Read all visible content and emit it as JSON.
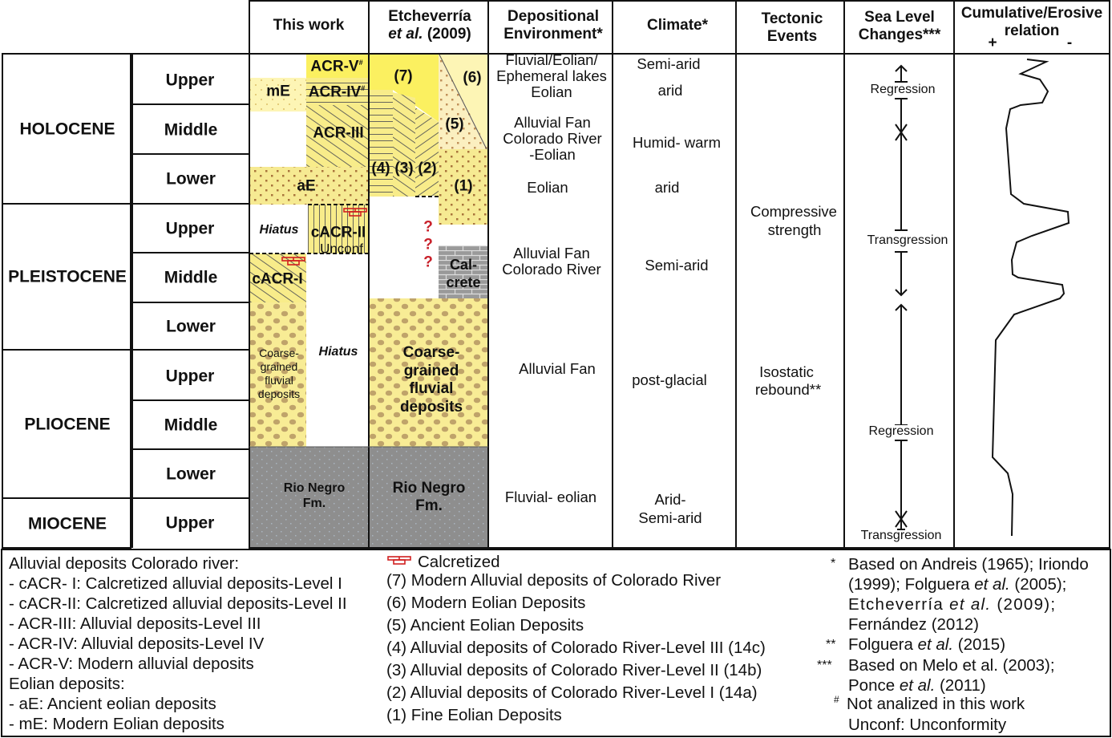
{
  "headers": {
    "this_work": "This work",
    "etcheverria_1": "Etcheverría",
    "etcheverria_2_italic": "et al.",
    "etcheverria_2_year": "(2009)",
    "dep_env_1": "Depositional",
    "dep_env_2": "Environment*",
    "climate": "Climate*",
    "tectonic_1": "Tectonic",
    "tectonic_2": "Events",
    "sea_1": "Sea Level",
    "sea_2": "Changes***",
    "cum_1": "Cumulative/Erosive",
    "cum_2": "relation",
    "cum_plus": "+",
    "cum_minus": "-"
  },
  "epochs": [
    "HOLOCENE",
    "PLEISTOCENE",
    "PLIOCENE",
    "MIOCENE"
  ],
  "subepochs": [
    "Upper",
    "Middle",
    "Lower",
    "Upper",
    "Middle",
    "Lower",
    "Upper",
    "Middle",
    "Lower",
    "Upper"
  ],
  "this_work_units": {
    "acr5": "ACR-V",
    "acr5_sup": "#",
    "me": "mE",
    "acr4": "ACR-IV",
    "acr4_sup": "#",
    "acr3": "ACR-III",
    "ae": "aE",
    "hiatus1": "Hiatus",
    "cacr2": "cACR-II",
    "unconf": "Unconf",
    "cacr1": "cACR-I",
    "hiatus2": "Hiatus",
    "coarse": [
      "Coarse-",
      "grained",
      "fluvial",
      "deposits"
    ],
    "rio_negro": [
      "Rio Negro",
      "Fm."
    ]
  },
  "etcheverria_units": {
    "u7": "(7)",
    "u6": "(6)",
    "u5": "(5)",
    "u4": "(4)",
    "u3": "(3)",
    "u2": "(2)",
    "u1": "(1)",
    "question": "?",
    "calcrete": [
      "Cal-",
      "crete"
    ],
    "coarse": [
      "Coarse-",
      "grained",
      "fluvial",
      "deposits"
    ],
    "rio_negro": [
      "Rio Negro",
      "Fm."
    ]
  },
  "depositional_environment": {
    "a": [
      "Fluvial/Eolian/",
      "Ephemeral lakes",
      "Eolian"
    ],
    "b": [
      "Alluvial Fan",
      "Colorado River",
      "-Eolian"
    ],
    "c": "Eolian",
    "d": [
      "Alluvial Fan",
      "Colorado River"
    ],
    "e": "Alluvial Fan",
    "f": "Fluvial- eolian"
  },
  "climate": {
    "a": "Semi-arid",
    "b": "arid",
    "c": "Humid- warm",
    "d": "arid",
    "e": "Semi-arid",
    "f": "post-glacial",
    "g1": "Arid-",
    "g2": "Semi-arid"
  },
  "tectonic": {
    "a": [
      "Compressive",
      "strength"
    ],
    "b": [
      "Isostatic",
      "rebound**"
    ]
  },
  "sea_level": {
    "labels": [
      "Regression",
      "Transgression",
      "Regression",
      "Transgression"
    ]
  },
  "legend": {
    "col1": [
      "Alluvial deposits Colorado river:",
      "- cACR- I: Calcretized alluvial deposits-Level I",
      "- cACR-II: Calcretized alluvial deposits-Level II",
      "- ACR-III: Alluvial deposits-Level III",
      "- ACR-IV: Alluvial deposits-Level IV",
      "- ACR-V: Modern alluvial deposits",
      "Eolian deposits:",
      "- aE: Ancient eolian deposits",
      "- mE: Modern Eolian deposits"
    ],
    "calcretized": "Calcretized",
    "col2": [
      "(7) Modern Alluvial deposits of Colorado River",
      "(6) Modern Eolian Deposits",
      "(5) Ancient Eolian Deposits",
      "(4) Alluvial deposits of Colorado River-Level III (14c)",
      "(3) Alluvial deposits of Colorado River-Level II (14b)",
      "(2) Alluvial deposits of Colorado River-Level I (14a)",
      "(1) Fine Eolian Deposits"
    ],
    "notes": {
      "m1": "*",
      "n1a": "Based on Andreis (1965); Iriondo",
      "n1b1": "(1999); Folguera ",
      "n1b2": "et al.",
      "n1b3": " (2005);",
      "n1c1": "Etcheverría ",
      "n1c2": "et al.",
      "n1c3": " (2009);",
      "n1d": "Fernández (2012)",
      "m2": "**",
      "n2a": "Folguera ",
      "n2b": "et al.",
      "n2c": " (2015)",
      "m3": "***",
      "n3a": "Based on  Melo et al. (2003);",
      "n3b1": "Ponce ",
      "n3b2": "et al.",
      "n3b3": " (2011)",
      "m4": "#",
      "n4": "Not analized in this work",
      "n5": "Unconf: Unconformity"
    }
  },
  "colors": {
    "yellow_modern": "#fbf060",
    "yellow_light": "#fdf5b5",
    "yellow_sand": "#f6ea92",
    "brown_dots": "#a8743c",
    "gravel": "#bfa36a",
    "rio_negro_gray": "#8e8e8e",
    "calcrete_gray": "#9a9a9a",
    "calcretized_red": "#d02020",
    "question_red": "#c8202a"
  }
}
